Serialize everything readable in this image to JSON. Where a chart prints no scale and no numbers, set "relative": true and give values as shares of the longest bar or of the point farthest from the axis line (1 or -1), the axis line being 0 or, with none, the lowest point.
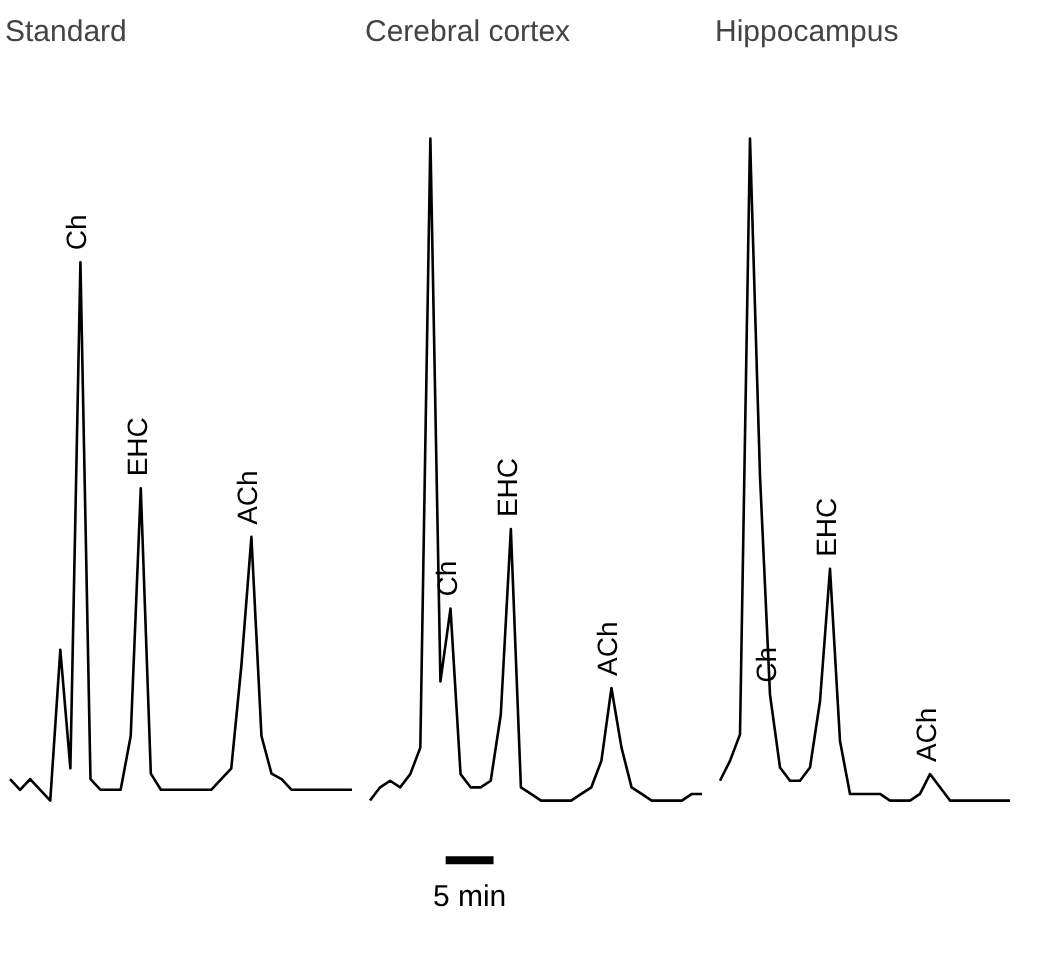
{
  "chart_data": [
    {
      "type": "line",
      "relative": true,
      "tick_labels": false,
      "grid": false,
      "title": "Standard",
      "categories": [
        null,
        null,
        null,
        null,
        null,
        null,
        null,
        null,
        null,
        null,
        null,
        null,
        null,
        null,
        null,
        null,
        null,
        null,
        null,
        null,
        null,
        null,
        null,
        null,
        null,
        null,
        null,
        null,
        null,
        null,
        null,
        null,
        null,
        null,
        null
      ],
      "series": [
        {
          "color": "#000000",
          "values": [
            0.04,
            0.02,
            0.04,
            0.02,
            0,
            0.28,
            0.06,
            1,
            0.04,
            0.02,
            0.02,
            0.02,
            0.12,
            0.58,
            0.05,
            0.02,
            0.02,
            0.02,
            0.02,
            0.02,
            0.02,
            0.04,
            0.06,
            0.25,
            0.49,
            0.12,
            0.05,
            0.04,
            0.02,
            0.02,
            0.02,
            0.02,
            0.02,
            0.02,
            0.02
          ]
        }
      ],
      "annotations": [
        {
          "text": "Ch",
          "y": 1
        },
        {
          "text": "EHC",
          "y": 0.58
        },
        {
          "text": "ACh",
          "y": 0.49
        }
      ]
    },
    {
      "type": "line",
      "relative": true,
      "tick_labels": false,
      "grid": false,
      "title": "Cerebral cortex",
      "categories": [
        null,
        null,
        null,
        null,
        null,
        null,
        null,
        null,
        null,
        null,
        null,
        null,
        null,
        null,
        null,
        null,
        null,
        null,
        null,
        null,
        null,
        null,
        null,
        null,
        null,
        null,
        null,
        null,
        null,
        null,
        null,
        null,
        null,
        null
      ],
      "series": [
        {
          "color": "#000000",
          "values": [
            0,
            0.02,
            0.03,
            0.02,
            0.04,
            0.08,
            1,
            0.18,
            0.29,
            0.04,
            0.02,
            0.02,
            0.03,
            0.13,
            0.41,
            0.02,
            0.01,
            0,
            0,
            0,
            0,
            0.01,
            0.02,
            0.06,
            0.17,
            0.08,
            0.02,
            0.01,
            0,
            0,
            0,
            0,
            0.01,
            0.01
          ]
        }
      ],
      "annotations": [
        {
          "text": "Ch",
          "y": 0.29
        },
        {
          "text": "EHC",
          "y": 0.41
        },
        {
          "text": "ACh",
          "y": 0.17
        },
        "5 min"
      ]
    },
    {
      "type": "line",
      "relative": true,
      "tick_labels": false,
      "grid": false,
      "title": "Hippocampus",
      "categories": [
        null,
        null,
        null,
        null,
        null,
        null,
        null,
        null,
        null,
        null,
        null,
        null,
        null,
        null,
        null,
        null,
        null,
        null,
        null,
        null,
        null,
        null,
        null,
        null,
        null,
        null,
        null,
        null,
        null,
        null
      ],
      "series": [
        {
          "color": "#000000",
          "values": [
            0.03,
            0.06,
            0.1,
            1,
            0.49,
            0.16,
            0.05,
            0.03,
            0.03,
            0.05,
            0.15,
            0.35,
            0.09,
            0.01,
            0.01,
            0.01,
            0.01,
            0,
            0,
            0,
            0.01,
            0.04,
            0.02,
            0,
            0,
            0,
            0,
            0,
            0,
            0
          ]
        }
      ],
      "annotations": [
        {
          "text": "Ch",
          "y": 0.16
        },
        {
          "text": "EHC",
          "y": 0.35
        },
        {
          "text": "ACh",
          "y": 0.04
        }
      ]
    }
  ]
}
